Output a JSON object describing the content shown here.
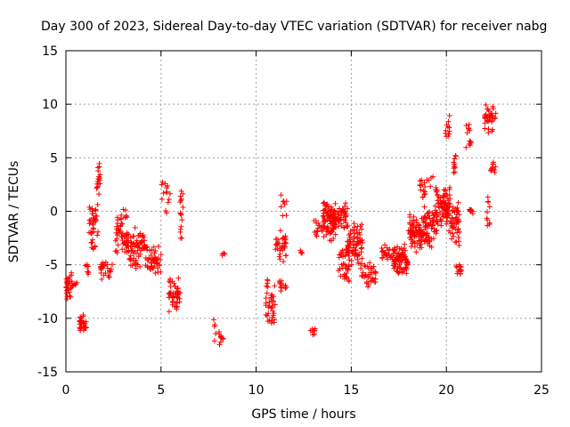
{
  "chart_data": {
    "type": "scatter",
    "title": "Day 300 of 2023, Sidereal Day-to-day VTEC variation (SDTVAR) for receiver nabg",
    "xlabel": "GPS time / hours",
    "ylabel": "SDTVAR / TECUs",
    "xlim": [
      0,
      25
    ],
    "ylim": [
      -15,
      15
    ],
    "xticks": [
      0,
      5,
      10,
      15,
      20,
      25
    ],
    "yticks": [
      -15,
      -10,
      -5,
      0,
      5,
      10,
      15
    ],
    "grid": true,
    "marker": "+",
    "color": "#ff0000",
    "clusters": [
      {
        "x0": 0.0,
        "x1": 0.35,
        "y_center": -7.0,
        "spread": 1.6,
        "n": 30
      },
      {
        "x0": 0.4,
        "x1": 0.6,
        "y_center": -6.8,
        "spread": 0.3,
        "n": 6
      },
      {
        "x0": 0.7,
        "x1": 1.1,
        "y_center": -10.5,
        "spread": 1.0,
        "n": 30
      },
      {
        "x0": 1.0,
        "x1": 1.2,
        "y_center": -5.5,
        "spread": 1.2,
        "n": 8
      },
      {
        "x0": 1.2,
        "x1": 1.7,
        "y_center": -1.5,
        "spread": 2.5,
        "n": 40
      },
      {
        "x0": 1.6,
        "x1": 1.8,
        "y_center": 3.0,
        "spread": 2.2,
        "n": 18
      },
      {
        "x0": 1.8,
        "x1": 2.5,
        "y_center": -5.5,
        "spread": 1.0,
        "n": 25
      },
      {
        "x0": 2.6,
        "x1": 3.3,
        "y_center": -2.0,
        "spread": 2.5,
        "n": 60
      },
      {
        "x0": 3.3,
        "x1": 4.2,
        "y_center": -3.5,
        "spread": 2.0,
        "n": 70
      },
      {
        "x0": 4.2,
        "x1": 5.0,
        "y_center": -4.5,
        "spread": 2.0,
        "n": 50
      },
      {
        "x0": 5.0,
        "x1": 5.5,
        "y_center": 1.5,
        "spread": 2.0,
        "n": 14
      },
      {
        "x0": 5.4,
        "x1": 6.0,
        "y_center": -7.8,
        "spread": 1.8,
        "n": 45
      },
      {
        "x0": 6.0,
        "x1": 6.2,
        "y_center": -0.5,
        "spread": 3.5,
        "n": 16
      },
      {
        "x0": 7.7,
        "x1": 7.9,
        "y_center": -11.0,
        "spread": 1.2,
        "n": 5
      },
      {
        "x0": 8.0,
        "x1": 8.3,
        "y_center": -11.8,
        "spread": 0.8,
        "n": 10
      },
      {
        "x0": 8.2,
        "x1": 8.35,
        "y_center": -4.0,
        "spread": 0.3,
        "n": 4
      },
      {
        "x0": 10.5,
        "x1": 11.0,
        "y_center": -8.5,
        "spread": 2.5,
        "n": 40
      },
      {
        "x0": 11.0,
        "x1": 11.6,
        "y_center": -3.0,
        "spread": 2.0,
        "n": 35
      },
      {
        "x0": 11.3,
        "x1": 11.6,
        "y_center": 0.5,
        "spread": 1.2,
        "n": 8
      },
      {
        "x0": 11.2,
        "x1": 11.6,
        "y_center": -7.0,
        "spread": 0.8,
        "n": 12
      },
      {
        "x0": 12.3,
        "x1": 12.5,
        "y_center": -4.0,
        "spread": 0.5,
        "n": 4
      },
      {
        "x0": 12.8,
        "x1": 13.1,
        "y_center": -11.5,
        "spread": 0.8,
        "n": 8
      },
      {
        "x0": 13.0,
        "x1": 13.5,
        "y_center": -1.5,
        "spread": 1.0,
        "n": 15
      },
      {
        "x0": 13.5,
        "x1": 14.2,
        "y_center": -1.0,
        "spread": 2.0,
        "n": 80
      },
      {
        "x0": 14.0,
        "x1": 14.8,
        "y_center": -0.5,
        "spread": 1.5,
        "n": 60
      },
      {
        "x0": 14.3,
        "x1": 14.9,
        "y_center": -5.0,
        "spread": 2.0,
        "n": 40
      },
      {
        "x0": 14.8,
        "x1": 15.6,
        "y_center": -3.0,
        "spread": 2.2,
        "n": 80
      },
      {
        "x0": 15.5,
        "x1": 16.3,
        "y_center": -6.0,
        "spread": 1.5,
        "n": 40
      },
      {
        "x0": 16.5,
        "x1": 17.2,
        "y_center": -4.0,
        "spread": 1.0,
        "n": 25
      },
      {
        "x0": 17.2,
        "x1": 18.0,
        "y_center": -4.5,
        "spread": 1.5,
        "n": 80
      },
      {
        "x0": 18.0,
        "x1": 18.8,
        "y_center": -2.0,
        "spread": 2.0,
        "n": 80
      },
      {
        "x0": 18.6,
        "x1": 19.3,
        "y_center": 2.0,
        "spread": 1.8,
        "n": 20
      },
      {
        "x0": 18.8,
        "x1": 19.5,
        "y_center": -1.5,
        "spread": 2.0,
        "n": 60
      },
      {
        "x0": 19.4,
        "x1": 20.2,
        "y_center": 0.5,
        "spread": 2.5,
        "n": 90
      },
      {
        "x0": 19.9,
        "x1": 20.2,
        "y_center": 7.5,
        "spread": 1.8,
        "n": 12
      },
      {
        "x0": 20.2,
        "x1": 20.7,
        "y_center": -1.0,
        "spread": 2.5,
        "n": 50
      },
      {
        "x0": 20.3,
        "x1": 20.5,
        "y_center": 4.5,
        "spread": 1.0,
        "n": 10
      },
      {
        "x0": 20.5,
        "x1": 20.8,
        "y_center": -5.5,
        "spread": 1.0,
        "n": 14
      },
      {
        "x0": 21.0,
        "x1": 21.3,
        "y_center": 7.0,
        "spread": 1.5,
        "n": 12
      },
      {
        "x0": 21.2,
        "x1": 21.4,
        "y_center": 0.0,
        "spread": 0.3,
        "n": 10
      },
      {
        "x0": 22.0,
        "x1": 22.6,
        "y_center": 8.5,
        "spread": 1.5,
        "n": 35
      },
      {
        "x0": 22.1,
        "x1": 22.3,
        "y_center": 0.5,
        "spread": 2.5,
        "n": 10
      },
      {
        "x0": 22.3,
        "x1": 22.6,
        "y_center": 4.0,
        "spread": 1.5,
        "n": 12
      }
    ]
  }
}
